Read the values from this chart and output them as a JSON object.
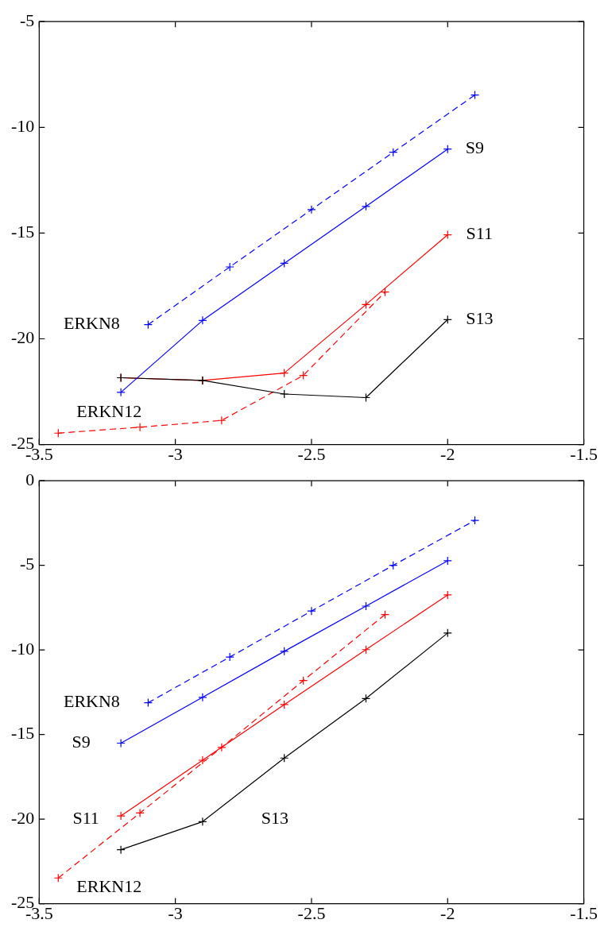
{
  "chart_data": [
    {
      "type": "line",
      "marker": "cross",
      "grid": false,
      "legend": false,
      "xlim": [
        -3.5,
        -1.5
      ],
      "xticks": [
        -3.5,
        -3,
        -2.5,
        -2,
        -1.5
      ],
      "ylim": [
        -25,
        -5
      ],
      "yticks": [
        -25,
        -20,
        -15,
        -10,
        -5
      ],
      "series": [
        {
          "name": "ERKN8",
          "color": "#0000ff",
          "line_style": "dashed",
          "x": [
            -3.1,
            -2.8,
            -2.5,
            -2.2,
            -1.9
          ],
          "values": [
            -19.33,
            -16.6,
            -13.89,
            -11.18,
            -8.47
          ]
        },
        {
          "name": "S9",
          "color": "#0000ff",
          "line_style": "solid",
          "x": [
            -3.2,
            -2.9,
            -2.6,
            -2.3,
            -2.0
          ],
          "values": [
            -22.53,
            -19.13,
            -16.43,
            -13.74,
            -11.03
          ]
        },
        {
          "name": "S13",
          "color": "#000000",
          "line_style": "solid",
          "x": [
            -3.2,
            -2.9,
            -2.6,
            -2.3,
            -2.0
          ],
          "values": [
            -21.84,
            -21.97,
            -22.61,
            -22.78,
            -19.09
          ]
        },
        {
          "name": "S11",
          "color": "#ff0000",
          "line_style": "solid",
          "x": [
            -3.2,
            -2.9,
            -2.6,
            -2.3,
            -2.0
          ],
          "values": [
            -21.84,
            -21.97,
            -21.62,
            -18.38,
            -15.08
          ]
        },
        {
          "name": "ERKN12",
          "color": "#ff0000",
          "line_style": "dashed",
          "x": [
            -3.43,
            -3.13,
            -2.83,
            -2.53,
            -2.23
          ],
          "values": [
            -24.46,
            -24.18,
            -23.86,
            -21.73,
            -17.79
          ]
        }
      ]
    },
    {
      "type": "line",
      "marker": "cross",
      "grid": false,
      "legend": false,
      "xlim": [
        -3.5,
        -1.5
      ],
      "xticks": [
        -3.5,
        -3,
        -2.5,
        -2,
        -1.5
      ],
      "ylim": [
        -25,
        0
      ],
      "yticks": [
        -25,
        -20,
        -15,
        -10,
        -5,
        0
      ],
      "series": [
        {
          "name": "ERKN8",
          "color": "#0000ff",
          "line_style": "dashed",
          "x": [
            -3.1,
            -2.8,
            -2.5,
            -2.2,
            -1.9
          ],
          "values": [
            -13.12,
            -10.42,
            -7.7,
            -5.0,
            -2.34
          ]
        },
        {
          "name": "S9",
          "color": "#0000ff",
          "line_style": "solid",
          "x": [
            -3.2,
            -2.9,
            -2.6,
            -2.3,
            -2.0
          ],
          "values": [
            -15.51,
            -12.8,
            -10.08,
            -7.41,
            -4.73
          ]
        },
        {
          "name": "S11",
          "color": "#ff0000",
          "line_style": "solid",
          "x": [
            -3.2,
            -2.9,
            -2.6,
            -2.3,
            -2.0
          ],
          "values": [
            -19.81,
            -16.52,
            -13.23,
            -9.98,
            -6.75
          ]
        },
        {
          "name": "ERKN12",
          "color": "#ff0000",
          "line_style": "dashed",
          "x": [
            -3.43,
            -3.13,
            -2.83,
            -2.53,
            -2.23
          ],
          "values": [
            -23.48,
            -19.64,
            -15.76,
            -11.81,
            -7.91
          ]
        },
        {
          "name": "S13",
          "color": "#000000",
          "line_style": "solid",
          "x": [
            -3.2,
            -2.9,
            -2.6,
            -2.3,
            -2.0
          ],
          "values": [
            -21.81,
            -20.15,
            -16.39,
            -12.87,
            -9.0
          ]
        }
      ]
    }
  ]
}
